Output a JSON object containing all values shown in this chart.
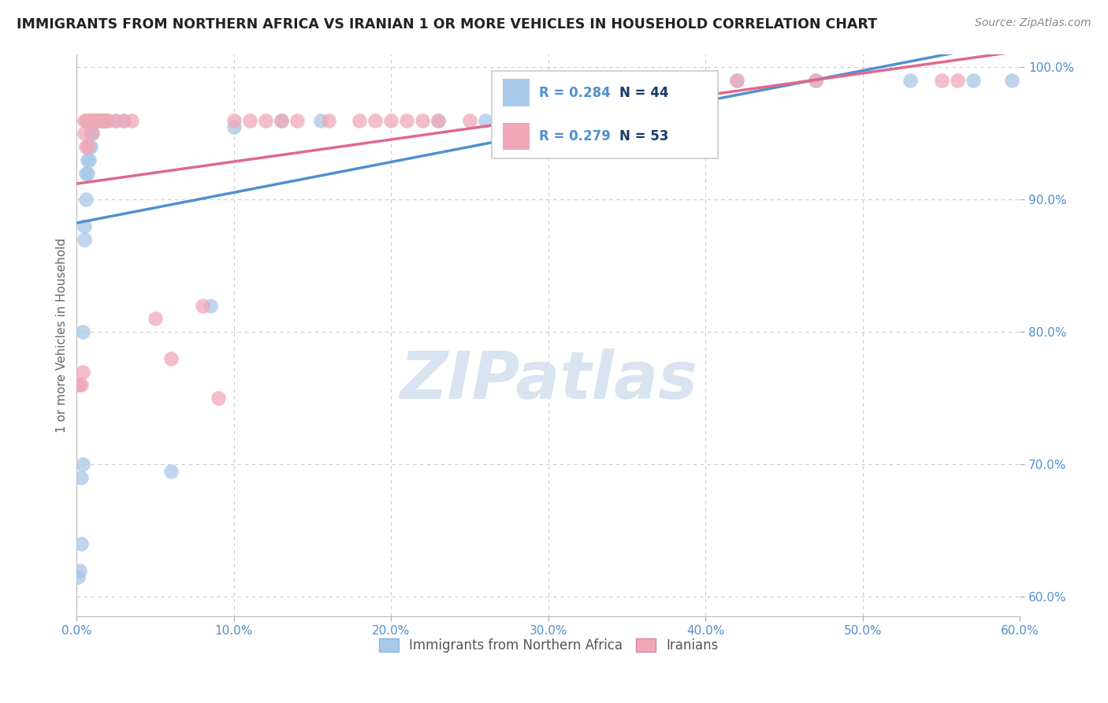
{
  "title": "IMMIGRANTS FROM NORTHERN AFRICA VS IRANIAN 1 OR MORE VEHICLES IN HOUSEHOLD CORRELATION CHART",
  "source": "Source: ZipAtlas.com",
  "ylabel": "1 or more Vehicles in Household",
  "xlim": [
    0.0,
    0.6
  ],
  "ylim": [
    0.585,
    1.01
  ],
  "xticks": [
    0.0,
    0.1,
    0.2,
    0.3,
    0.4,
    0.5,
    0.6
  ],
  "xtick_labels": [
    "0.0%",
    "10.0%",
    "20.0%",
    "30.0%",
    "40.0%",
    "50.0%",
    "60.0%"
  ],
  "yticks": [
    0.6,
    0.7,
    0.8,
    0.9,
    1.0
  ],
  "ytick_labels": [
    "60.0%",
    "70.0%",
    "80.0%",
    "90.0%",
    "100.0%"
  ],
  "blue_R": 0.284,
  "blue_N": 44,
  "pink_R": 0.279,
  "pink_N": 53,
  "blue_color": "#a8c8e8",
  "pink_color": "#f0a8b8",
  "blue_line_color": "#5090d0",
  "pink_line_color": "#e06888",
  "tick_color": "#5090d0",
  "watermark_text": "ZIPatlas",
  "watermark_color": "#d8e4f0",
  "blue_x": [
    0.001,
    0.002,
    0.003,
    0.003,
    0.004,
    0.004,
    0.005,
    0.005,
    0.006,
    0.006,
    0.007,
    0.007,
    0.008,
    0.008,
    0.009,
    0.009,
    0.01,
    0.01,
    0.011,
    0.011,
    0.012,
    0.013,
    0.014,
    0.015,
    0.016,
    0.017,
    0.018,
    0.02,
    0.025,
    0.03,
    0.06,
    0.085,
    0.1,
    0.13,
    0.155,
    0.23,
    0.26,
    0.31,
    0.38,
    0.42,
    0.47,
    0.53,
    0.57,
    0.595
  ],
  "blue_y": [
    0.615,
    0.62,
    0.64,
    0.69,
    0.7,
    0.8,
    0.87,
    0.88,
    0.9,
    0.92,
    0.92,
    0.93,
    0.93,
    0.94,
    0.94,
    0.95,
    0.95,
    0.96,
    0.96,
    0.96,
    0.96,
    0.96,
    0.96,
    0.96,
    0.96,
    0.96,
    0.96,
    0.96,
    0.96,
    0.96,
    0.695,
    0.82,
    0.955,
    0.96,
    0.96,
    0.96,
    0.96,
    0.96,
    0.99,
    0.99,
    0.99,
    0.99,
    0.99,
    0.99
  ],
  "pink_x": [
    0.001,
    0.002,
    0.003,
    0.004,
    0.005,
    0.005,
    0.006,
    0.006,
    0.007,
    0.007,
    0.008,
    0.008,
    0.009,
    0.01,
    0.01,
    0.011,
    0.012,
    0.013,
    0.015,
    0.016,
    0.018,
    0.02,
    0.025,
    0.03,
    0.035,
    0.05,
    0.06,
    0.08,
    0.09,
    0.1,
    0.11,
    0.12,
    0.13,
    0.14,
    0.16,
    0.18,
    0.19,
    0.2,
    0.21,
    0.22,
    0.23,
    0.25,
    0.28,
    0.31,
    0.32,
    0.34,
    0.37,
    0.38,
    0.4,
    0.42,
    0.47,
    0.55,
    0.56
  ],
  "pink_y": [
    0.76,
    0.76,
    0.76,
    0.77,
    0.95,
    0.96,
    0.94,
    0.96,
    0.94,
    0.96,
    0.96,
    0.96,
    0.96,
    0.95,
    0.96,
    0.96,
    0.96,
    0.96,
    0.96,
    0.96,
    0.96,
    0.96,
    0.96,
    0.96,
    0.96,
    0.81,
    0.78,
    0.82,
    0.75,
    0.96,
    0.96,
    0.96,
    0.96,
    0.96,
    0.96,
    0.96,
    0.96,
    0.96,
    0.96,
    0.96,
    0.96,
    0.96,
    0.96,
    0.96,
    0.96,
    0.96,
    0.98,
    0.98,
    0.99,
    0.99,
    0.99,
    0.99,
    0.99
  ]
}
